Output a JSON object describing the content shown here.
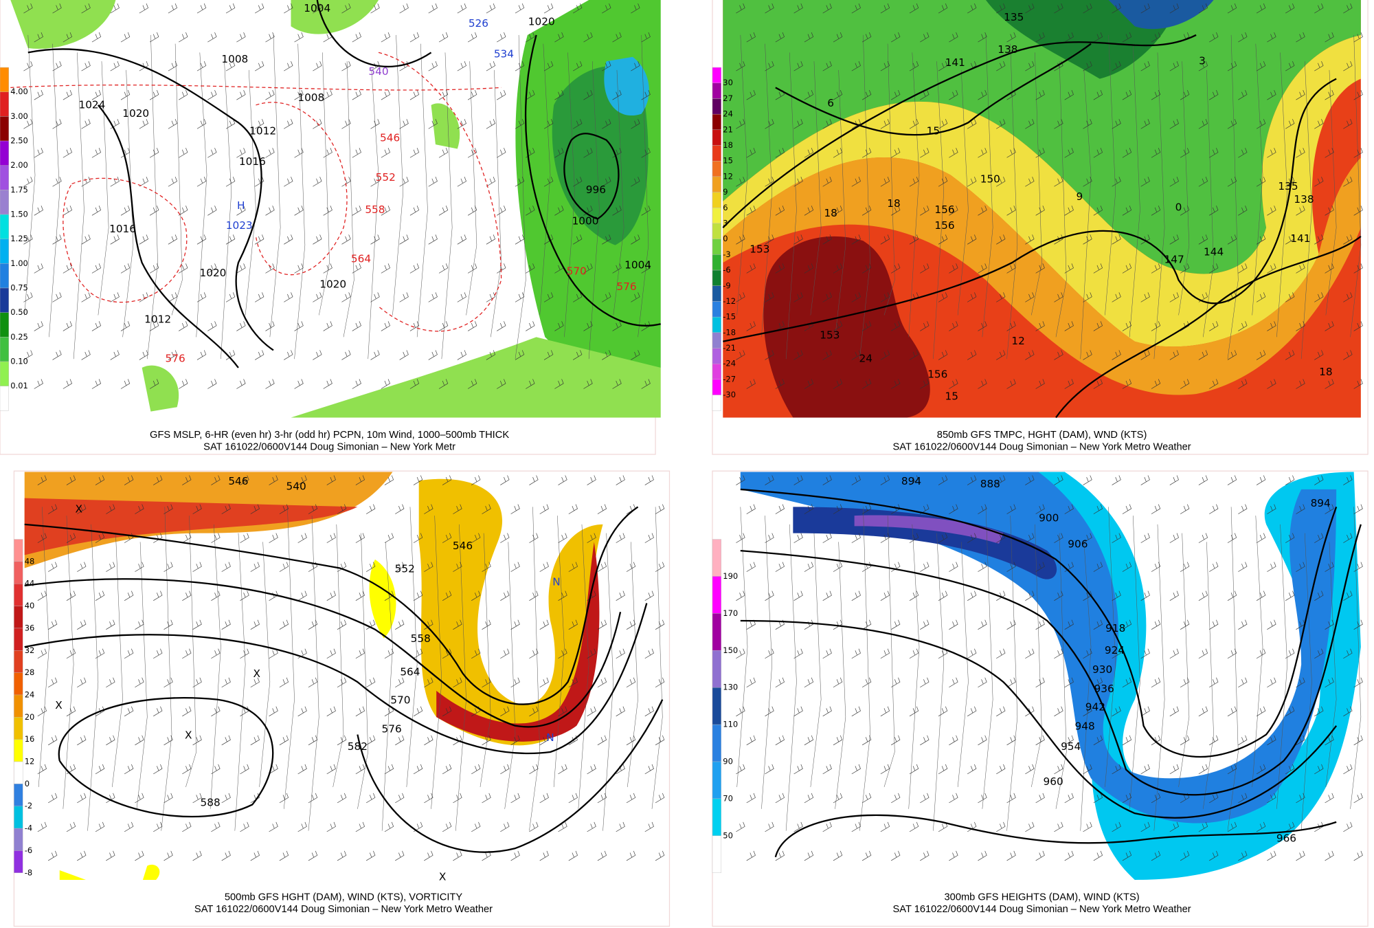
{
  "panels": [
    {
      "caption": [
        "GFS MSLP, 6-HR (even hr) 3-hr (odd hr) PCPN, 10m Wind, 1000–500mb THICK",
        "SAT 161022/0600V144 Doug Simonian – New York Metr"
      ],
      "scale": [
        "4.00",
        "3.00",
        "2.50",
        "2.00",
        "1.75",
        "1.50",
        "1.25",
        "1.00",
        "0.75",
        "0.50",
        "0.25",
        "0.10",
        "0.01"
      ],
      "labels": [
        "1004",
        "1020",
        "1008",
        "1024",
        "1020",
        "1008",
        "1012",
        "1016",
        "1016",
        "1020",
        "1020",
        "1012",
        "1000",
        "1004",
        "996",
        "540",
        "546",
        "552",
        "558",
        "564",
        "570",
        "576",
        "576",
        "526",
        "534",
        "H",
        "1023"
      ]
    },
    {
      "caption": [
        "850mb GFS TMPC, HGHT (DAM), WND (KTS)",
        "SAT 161022/0600V144 Doug Simonian – New York Metro Weather"
      ],
      "scale": [
        "30",
        "27",
        "24",
        "21",
        "18",
        "15",
        "12",
        "9",
        "6",
        "3",
        "0",
        "-3",
        "-6",
        "-9",
        "-12",
        "-15",
        "-18",
        "-21",
        "-24",
        "-27",
        "-30"
      ],
      "labels": [
        "135",
        "138",
        "141",
        "153",
        "153",
        "150",
        "156",
        "156",
        "156",
        "135",
        "138",
        "141",
        "144",
        "147",
        "15",
        "18",
        "18",
        "12",
        "9",
        "6",
        "0",
        "3",
        "24",
        "15",
        "18"
      ]
    },
    {
      "caption": [
        "500mb GFS HGHT (DAM), WIND (KTS), VORTICITY",
        "SAT 161022/0600V144 Doug Simonian – New York Metro Weather"
      ],
      "scale": [
        "48",
        "44",
        "40",
        "36",
        "32",
        "28",
        "24",
        "20",
        "16",
        "12",
        "0",
        "-2",
        "-4",
        "-6",
        "-8"
      ],
      "labels": [
        "546",
        "540",
        "546",
        "552",
        "558",
        "564",
        "570",
        "576",
        "582",
        "588",
        "X",
        "X",
        "X",
        "X",
        "X",
        "N",
        "N"
      ]
    },
    {
      "caption": [
        "300mb GFS HEIGHTS (DAM), WIND (KTS)",
        "SAT 161022/0600V144 Doug Simonian – New York Metro Weather"
      ],
      "scale": [
        "190",
        "170",
        "150",
        "130",
        "110",
        "90",
        "70",
        "50"
      ],
      "labels": [
        "894",
        "888",
        "894",
        "900",
        "906",
        "918",
        "924",
        "930",
        "936",
        "942",
        "948",
        "954",
        "960",
        "966"
      ]
    }
  ]
}
